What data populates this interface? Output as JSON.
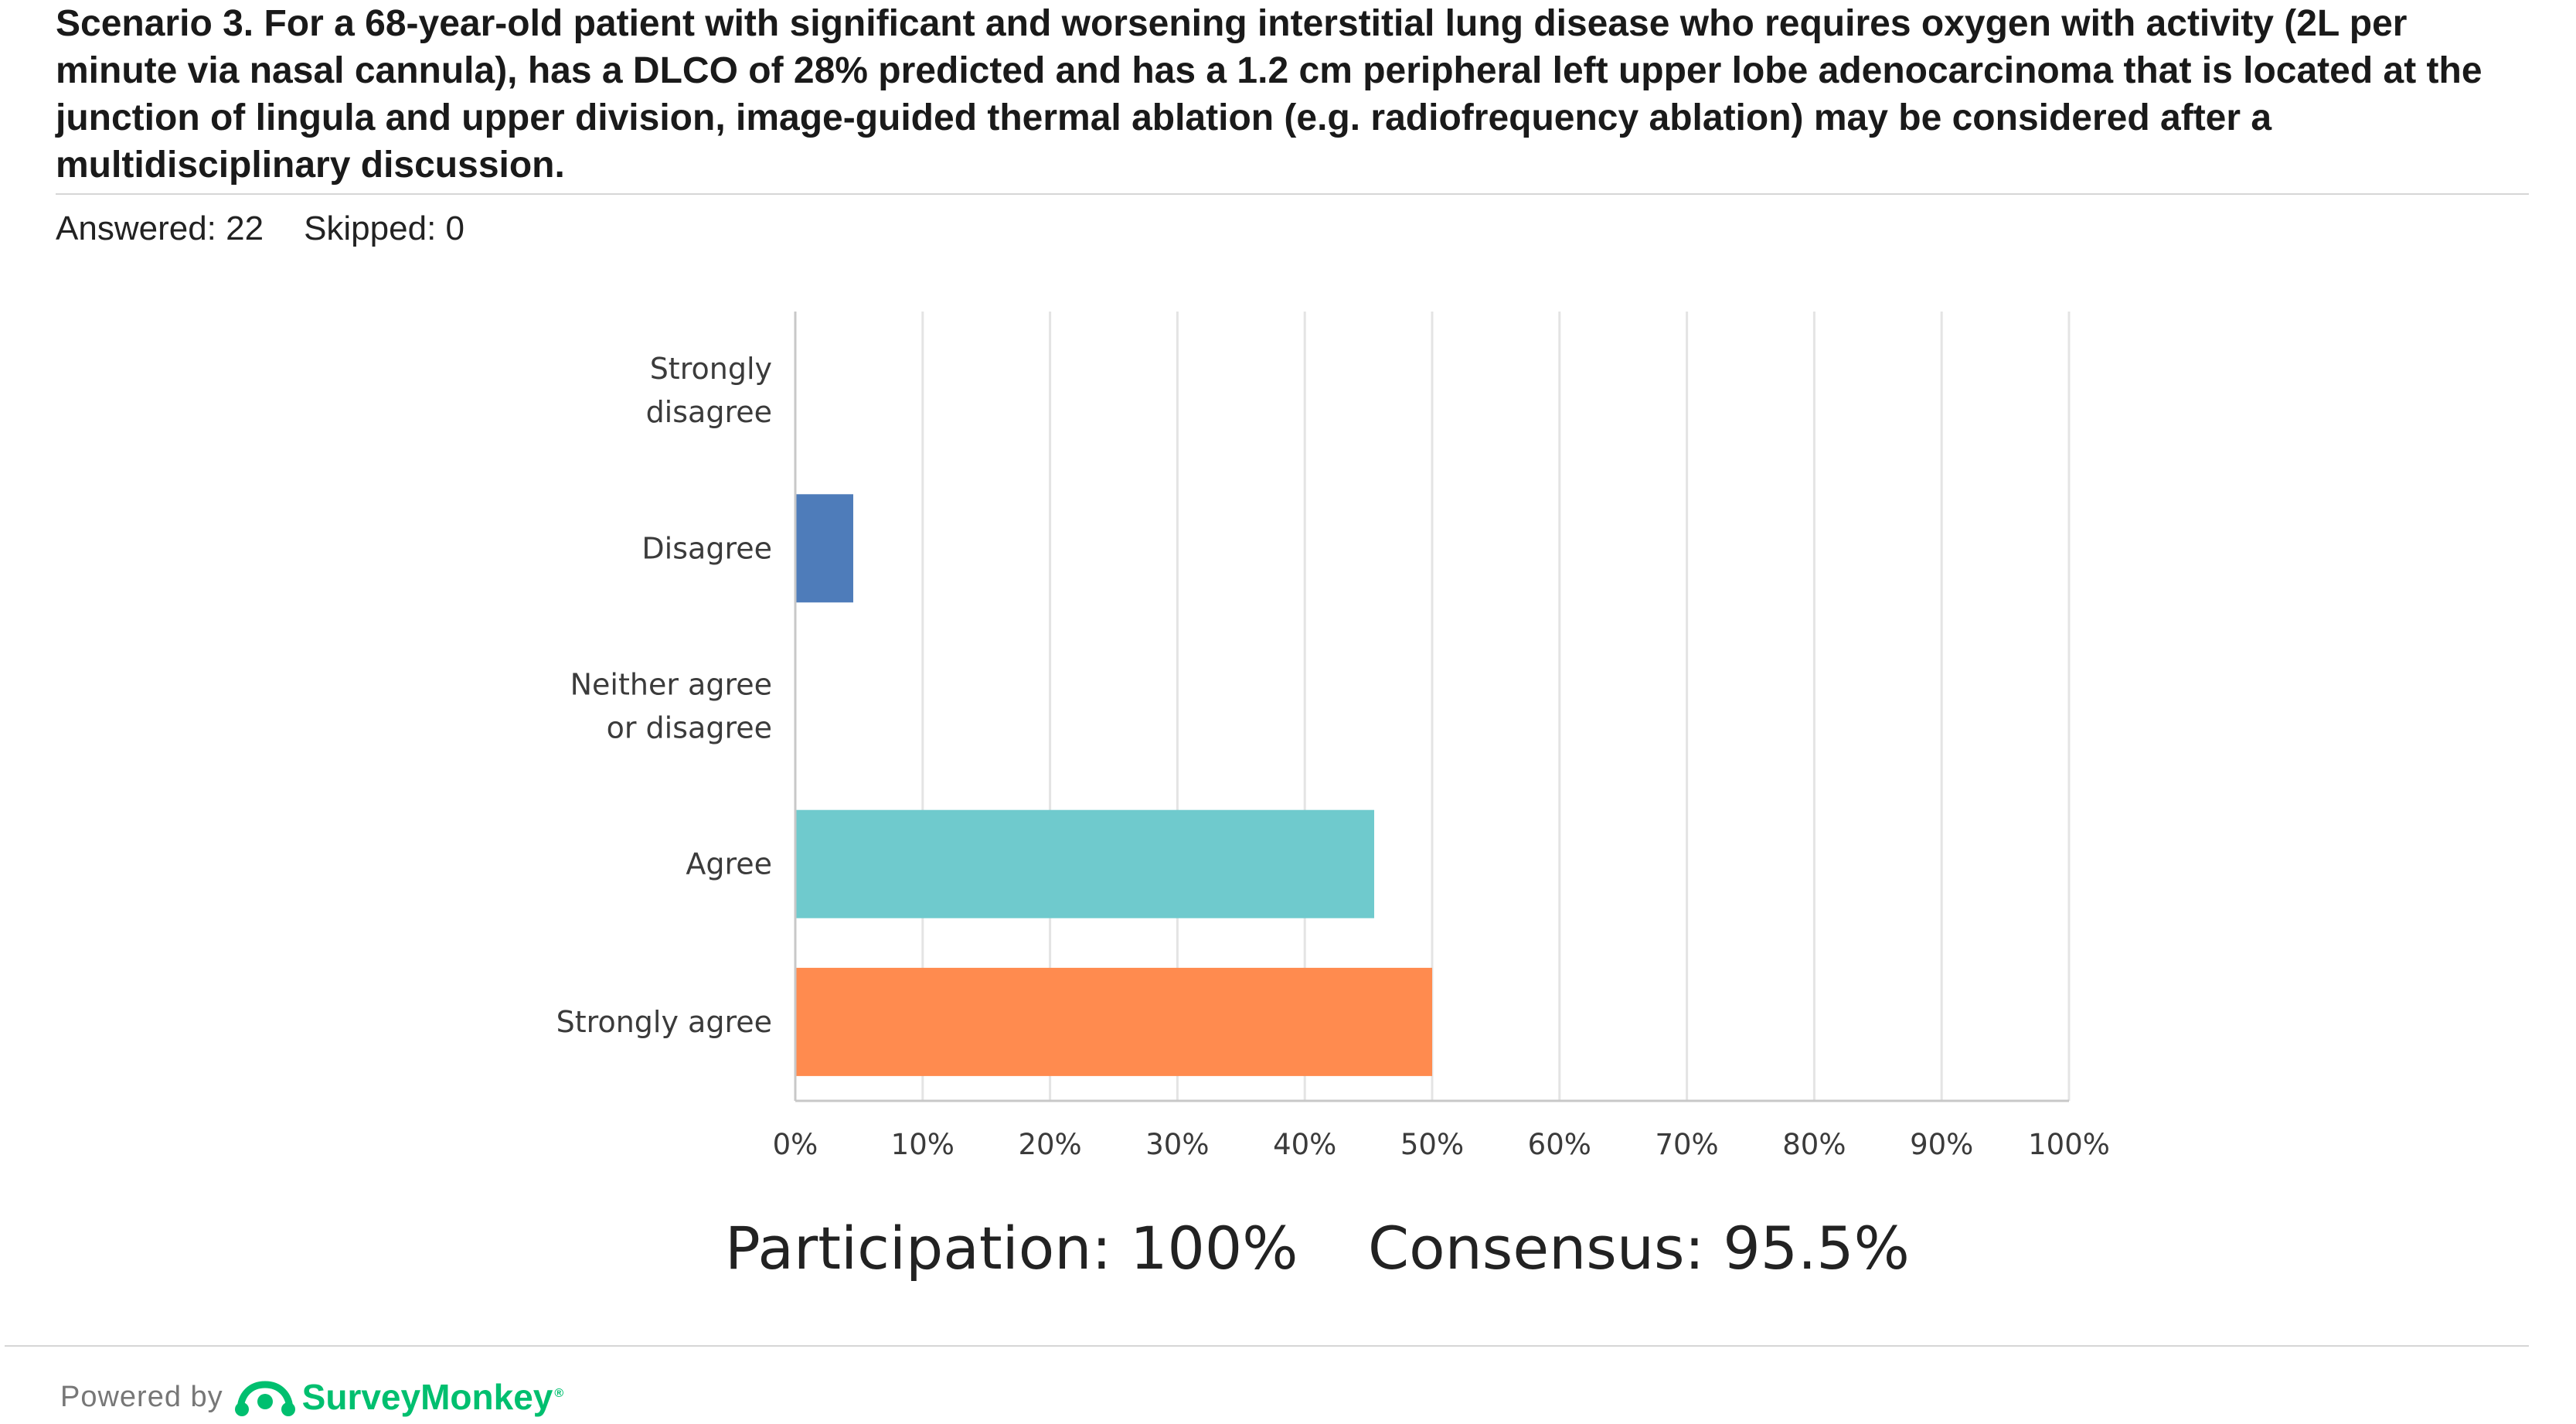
{
  "question": {
    "text": "Scenario 3. For a 68-year-old patient with significant and worsening interstitial lung disease who requires oxygen with activity (2L per minute via nasal cannula), has a DLCO of 28% predicted and has a 1.2 cm peripheral left upper lobe adenocarcinoma that is located at the junction of lingula and upper division, image-guided thermal ablation (e.g. radiofrequency ablation) may be considered after a multidisciplinary discussion."
  },
  "summary": {
    "answered": "Answered: 22",
    "skipped": "Skipped: 0"
  },
  "chart_data": {
    "type": "bar",
    "orientation": "horizontal",
    "categories": [
      [
        "Strongly",
        "disagree"
      ],
      [
        "Disagree"
      ],
      [
        "Neither agree",
        "or disagree"
      ],
      [
        "Agree"
      ],
      [
        "Strongly agree"
      ]
    ],
    "values": [
      0,
      4.55,
      0,
      45.45,
      50
    ],
    "colors": [
      "#4e7cba",
      "#4e7cba",
      "#6fcacd",
      "#6fcacd",
      "#ff8b4f"
    ],
    "xlim": [
      0,
      100
    ],
    "xticks": [
      "0%",
      "10%",
      "20%",
      "30%",
      "40%",
      "50%",
      "60%",
      "70%",
      "80%",
      "90%",
      "100%"
    ],
    "grid": true,
    "grid_color": "#e4e4e4",
    "axis_color": "#c8c8c8"
  },
  "stats": {
    "participation": "Participation: 100%",
    "consensus": "Consensus: 95.5%"
  },
  "footer": {
    "powered_by": "Powered by",
    "brand": "SurveyMonkey",
    "brand_icon": "surveymonkey-logo-icon",
    "brand_color": "#00bf6f"
  }
}
